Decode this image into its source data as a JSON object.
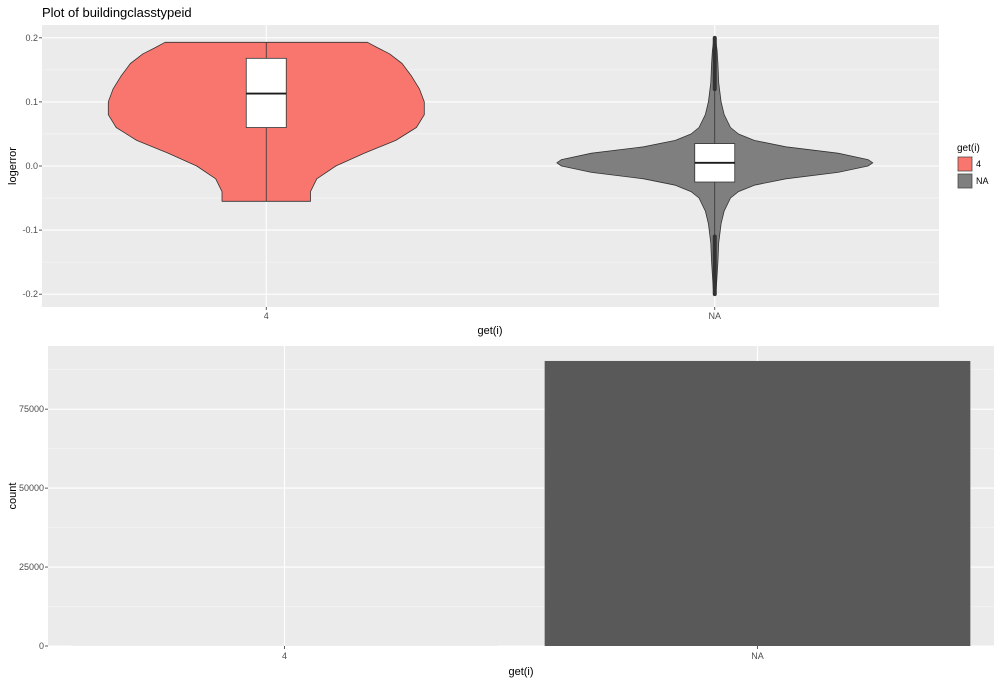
{
  "title": "Plot of buildingclasstypeid",
  "chart_data": [
    {
      "type": "violin",
      "xlabel": "get(i)",
      "ylabel": "logerror",
      "categories": [
        "4",
        "NA"
      ],
      "ylim": [
        -0.22,
        0.22
      ],
      "yticks": [
        -0.2,
        -0.1,
        0.0,
        0.1,
        0.2
      ],
      "ytick_labels": [
        "-0.2",
        "-0.1",
        "0.0",
        "0.1",
        "0.2"
      ],
      "grid": true,
      "legend": {
        "title": "get(i)",
        "placement": "right",
        "entries": [
          {
            "label": "4",
            "color": "#F8766D"
          },
          {
            "label": "NA",
            "color": "#7F7F7F"
          }
        ]
      },
      "series": [
        {
          "category": "4",
          "color": "#F8766D",
          "density": [
            [
              -0.055,
              0.28
            ],
            [
              -0.04,
              0.28
            ],
            [
              -0.02,
              0.32
            ],
            [
              0.0,
              0.44
            ],
            [
              0.02,
              0.62
            ],
            [
              0.04,
              0.82
            ],
            [
              0.06,
              0.95
            ],
            [
              0.08,
              1.0
            ],
            [
              0.1,
              1.0
            ],
            [
              0.12,
              0.97
            ],
            [
              0.14,
              0.92
            ],
            [
              0.16,
              0.86
            ],
            [
              0.175,
              0.78
            ],
            [
              0.185,
              0.7
            ],
            [
              0.193,
              0.64
            ]
          ],
          "box": {
            "q1": 0.06,
            "median": 0.113,
            "q3": 0.168,
            "whisker_low": -0.055,
            "whisker_high": 0.193
          },
          "outliers": []
        },
        {
          "category": "NA",
          "color": "#7F7F7F",
          "density": [
            [
              -0.2,
              0.005
            ],
            [
              -0.19,
              0.01
            ],
            [
              -0.17,
              0.015
            ],
            [
              -0.15,
              0.02
            ],
            [
              -0.12,
              0.025
            ],
            [
              -0.09,
              0.04
            ],
            [
              -0.07,
              0.06
            ],
            [
              -0.05,
              0.1
            ],
            [
              -0.04,
              0.15
            ],
            [
              -0.03,
              0.25
            ],
            [
              -0.02,
              0.45
            ],
            [
              -0.01,
              0.78
            ],
            [
              0.0,
              0.97
            ],
            [
              0.005,
              1.0
            ],
            [
              0.01,
              0.97
            ],
            [
              0.02,
              0.78
            ],
            [
              0.03,
              0.45
            ],
            [
              0.04,
              0.25
            ],
            [
              0.05,
              0.15
            ],
            [
              0.06,
              0.1
            ],
            [
              0.08,
              0.06
            ],
            [
              0.1,
              0.04
            ],
            [
              0.13,
              0.025
            ],
            [
              0.16,
              0.02
            ],
            [
              0.18,
              0.015
            ],
            [
              0.19,
              0.01
            ],
            [
              0.2,
              0.005
            ]
          ],
          "box": {
            "q1": -0.025,
            "median": 0.005,
            "q3": 0.035,
            "whisker_low": -0.11,
            "whisker_high": 0.12
          },
          "outliers": [
            [
              -0.2,
              -0.11
            ],
            [
              0.12,
              0.2
            ]
          ]
        }
      ]
    },
    {
      "type": "bar",
      "xlabel": "get(i)",
      "ylabel": "count",
      "categories": [
        "4",
        "NA"
      ],
      "values": [
        16,
        90259
      ],
      "ylim": [
        0,
        95000
      ],
      "yticks": [
        0,
        25000,
        50000,
        75000
      ],
      "ytick_labels": [
        "0",
        "25000",
        "50000",
        "75000"
      ],
      "grid": true,
      "color": "#595959"
    }
  ]
}
